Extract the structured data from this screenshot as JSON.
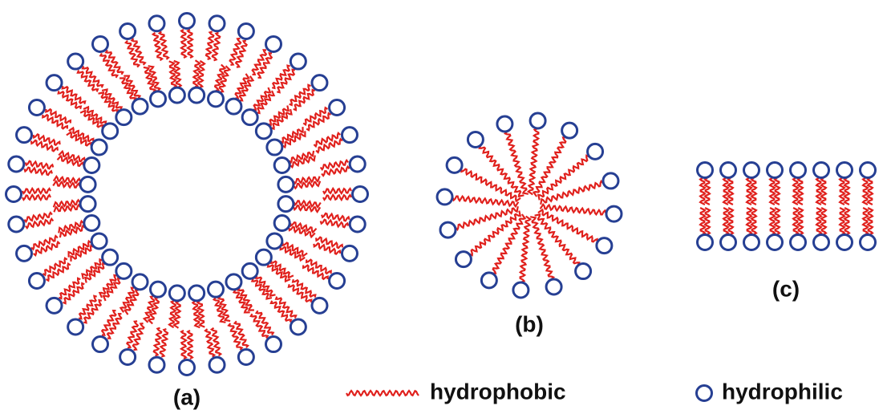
{
  "panels": [
    {
      "label": "(a)"
    },
    {
      "label": "(b)"
    },
    {
      "label": "(c)"
    }
  ],
  "legend": [
    {
      "label": "hydrophobic"
    },
    {
      "label": "hydrophilic"
    }
  ]
}
